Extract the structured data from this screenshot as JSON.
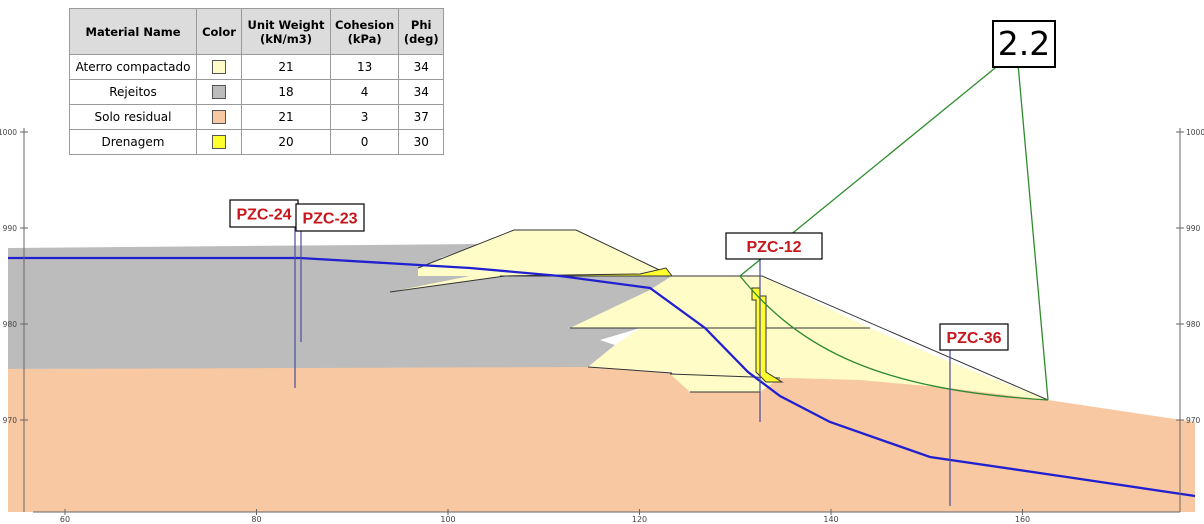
{
  "material_table": {
    "headers": {
      "name": "Material Name",
      "color": "Color",
      "unit_weight": [
        "Unit Weight",
        "(kN/m3)"
      ],
      "cohesion": [
        "Cohesion",
        "(kPa)"
      ],
      "phi": [
        "Phi",
        "(deg)"
      ]
    },
    "rows": [
      {
        "name": "Aterro compactado",
        "color": "#fffcc8",
        "unit_weight": "21",
        "cohesion": "13",
        "phi": "34"
      },
      {
        "name": "Rejeitos",
        "color": "#bcbcbc",
        "unit_weight": "18",
        "cohesion": "4",
        "phi": "34"
      },
      {
        "name": "Solo residual",
        "color": "#f8c8a2",
        "unit_weight": "21",
        "cohesion": "3",
        "phi": "37"
      },
      {
        "name": "Drenagem",
        "color": "#ffff30",
        "unit_weight": "20",
        "cohesion": "0",
        "phi": "30"
      }
    ]
  },
  "factor_of_safety": "2.2",
  "axes": {
    "x_ticks": [
      "60",
      "80",
      "100",
      "120",
      "140",
      "160"
    ],
    "y_ticks": [
      "1000",
      "990",
      "980",
      "970"
    ]
  },
  "piezometers": [
    "PZC-24",
    "PZC-23",
    "PZC-12",
    "PZC-36"
  ],
  "colors": {
    "fill": "#fffcc8",
    "tailings": "#bcbcbc",
    "residual_soil": "#f8c8a2",
    "drain": "#ffff30",
    "water_table": "#2020d0",
    "slip_surface": "#2e8b2e",
    "label_text": "#c8161d"
  }
}
